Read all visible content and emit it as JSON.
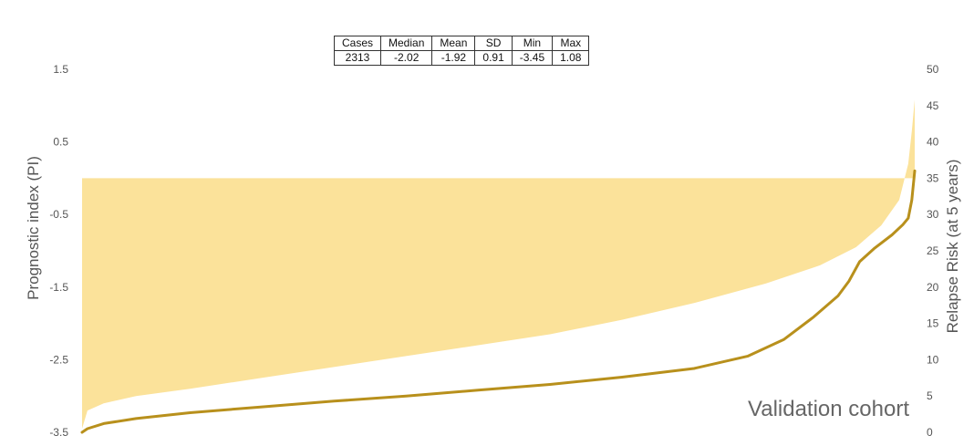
{
  "chart_data": {
    "type": "area",
    "annotation": "Validation cohort",
    "ylabel_left": "Prognostic index (PI)",
    "ylabel_right": "Relapse Risk (at 5 years)",
    "ylim_left": [
      -3.5,
      1.5
    ],
    "ylim_right": [
      0,
      50
    ],
    "yticks_left": [
      "1.5",
      "0.5",
      "-0.5",
      "-1.5",
      "-2.5",
      "-3.5"
    ],
    "yticks_right": [
      "50",
      "45",
      "40",
      "35",
      "30",
      "25",
      "20",
      "15",
      "10",
      "5",
      "0"
    ],
    "xlim": [
      0,
      2313
    ],
    "grid": false,
    "area_baseline": -0.0,
    "series": [
      {
        "axis": "left",
        "style": "area",
        "color": "#fbe29a",
        "points": [
          [
            0,
            -3.45
          ],
          [
            15,
            -3.2
          ],
          [
            60,
            -3.1
          ],
          [
            150,
            -3.0
          ],
          [
            300,
            -2.9
          ],
          [
            500,
            -2.75
          ],
          [
            700,
            -2.6
          ],
          [
            900,
            -2.45
          ],
          [
            1100,
            -2.3
          ],
          [
            1300,
            -2.15
          ],
          [
            1500,
            -1.95
          ],
          [
            1700,
            -1.72
          ],
          [
            1900,
            -1.45
          ],
          [
            2050,
            -1.2
          ],
          [
            2150,
            -0.95
          ],
          [
            2220,
            -0.65
          ],
          [
            2270,
            -0.3
          ],
          [
            2295,
            0.2
          ],
          [
            2305,
            0.65
          ],
          [
            2313,
            1.08
          ]
        ]
      },
      {
        "axis": "right",
        "style": "line",
        "color": "#b8901c",
        "points": [
          [
            0,
            0
          ],
          [
            15,
            0.5
          ],
          [
            60,
            1.2
          ],
          [
            150,
            1.9
          ],
          [
            300,
            2.7
          ],
          [
            500,
            3.5
          ],
          [
            700,
            4.3
          ],
          [
            900,
            5.0
          ],
          [
            1100,
            5.8
          ],
          [
            1300,
            6.6
          ],
          [
            1500,
            7.6
          ],
          [
            1700,
            8.8
          ],
          [
            1850,
            10.5
          ],
          [
            1950,
            12.8
          ],
          [
            2030,
            15.8
          ],
          [
            2100,
            18.8
          ],
          [
            2130,
            20.8
          ],
          [
            2160,
            23.5
          ],
          [
            2200,
            25.3
          ],
          [
            2250,
            27.2
          ],
          [
            2280,
            28.6
          ],
          [
            2295,
            29.5
          ],
          [
            2305,
            32.0
          ],
          [
            2313,
            36.0
          ]
        ]
      }
    ]
  },
  "stats_table": {
    "headers": [
      "Cases",
      "Median",
      "Mean",
      "SD",
      "Min",
      "Max"
    ],
    "values": [
      "2313",
      "-2.02",
      "-1.92",
      "0.91",
      "-3.45",
      "1.08"
    ]
  }
}
